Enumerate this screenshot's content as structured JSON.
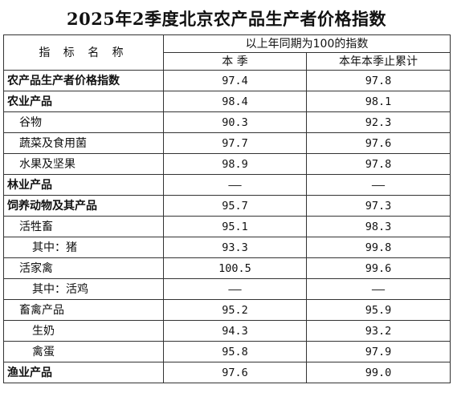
{
  "title": "2025年2季度北京农产品生产者价格指数",
  "header": {
    "name_col": "指 标 名 称",
    "group": "以上年同期为100的指数",
    "col_quarter": "本 季",
    "col_cumulative": "本年本季止累计"
  },
  "rows": [
    {
      "label": "农产品生产者价格指数",
      "quarter": "97.4",
      "cumulative": "97.8"
    },
    {
      "label": "农业产品",
      "quarter": "98.4",
      "cumulative": "98.1"
    },
    {
      "label": "谷物",
      "quarter": "90.3",
      "cumulative": "92.3"
    },
    {
      "label": "蔬菜及食用菌",
      "quarter": "97.7",
      "cumulative": "97.6"
    },
    {
      "label": "水果及坚果",
      "quarter": "98.9",
      "cumulative": "97.8"
    },
    {
      "label": "林业产品",
      "quarter": "——",
      "cumulative": "——"
    },
    {
      "label": "饲养动物及其产品",
      "quarter": "95.7",
      "cumulative": "97.3"
    },
    {
      "label": "活牲畜",
      "quarter": "95.1",
      "cumulative": "98.3"
    },
    {
      "label": "其中：猪",
      "quarter": "93.3",
      "cumulative": "99.8"
    },
    {
      "label": "活家禽",
      "quarter": "100.5",
      "cumulative": "99.6"
    },
    {
      "label": "其中：活鸡",
      "quarter": "——",
      "cumulative": "——"
    },
    {
      "label": "畜禽产品",
      "quarter": "95.2",
      "cumulative": "95.9"
    },
    {
      "label": "生奶",
      "quarter": "94.3",
      "cumulative": "93.2"
    },
    {
      "label": "禽蛋",
      "quarter": "95.8",
      "cumulative": "97.9"
    },
    {
      "label": "渔业产品",
      "quarter": "97.6",
      "cumulative": "99.0"
    }
  ]
}
